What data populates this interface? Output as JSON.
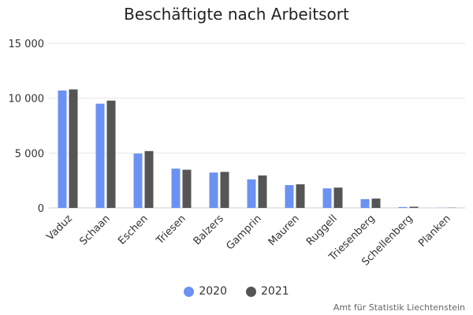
{
  "chart_data": {
    "type": "bar",
    "title": "Beschäftigte nach Arbeitsort",
    "xlabel": "",
    "ylabel": "",
    "categories": [
      "Vaduz",
      "Schaan",
      "Eschen",
      "Triesen",
      "Balzers",
      "Gamprin",
      "Mauren",
      "Ruggell",
      "Triesenberg",
      "Schellenberg",
      "Planken"
    ],
    "series": [
      {
        "name": "2020",
        "color": "#6b92f2",
        "values": [
          10700,
          9500,
          4950,
          3580,
          3220,
          2600,
          2080,
          1780,
          800,
          80,
          15
        ]
      },
      {
        "name": "2021",
        "color": "#555555",
        "values": [
          10800,
          9780,
          5180,
          3480,
          3280,
          2960,
          2150,
          1850,
          850,
          110,
          20
        ]
      }
    ],
    "ylim": [
      0,
      15000
    ],
    "yticks": [
      0,
      5000,
      10000,
      15000
    ],
    "ytick_labels": [
      "0",
      "5 000",
      "10 000",
      "15 000"
    ],
    "grid": true,
    "legend_position": "bottom"
  },
  "credits": "Amt für Statistik Liechtenstein"
}
